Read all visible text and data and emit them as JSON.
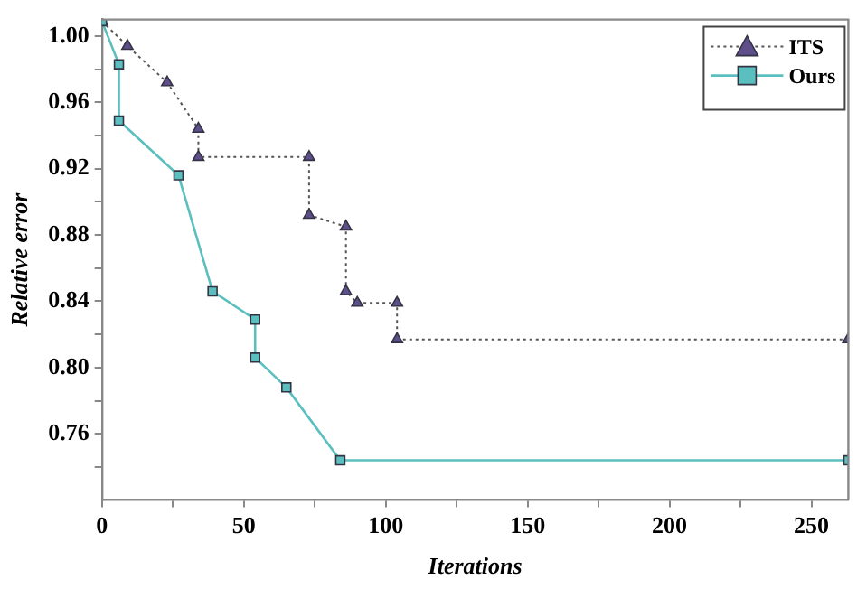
{
  "chart_data": {
    "type": "line",
    "xlabel": "Iterations",
    "ylabel": "Relative error",
    "xlim": [
      0,
      263
    ],
    "ylim": [
      0.72,
      1.01
    ],
    "xticks": [
      0,
      {
        "value": 25,
        "label": null
      },
      50,
      {
        "value": 75,
        "label": null
      },
      100,
      {
        "value": 125,
        "label": null
      },
      150,
      {
        "value": 175,
        "label": null
      },
      200,
      {
        "value": 225,
        "label": null
      },
      250
    ],
    "yticks": [
      {
        "value": 0.74,
        "label": null
      },
      0.76,
      {
        "value": 0.78,
        "label": null
      },
      {
        "value": 0.8,
        "label": "0.80"
      },
      {
        "value": 0.82,
        "label": null
      },
      0.84,
      {
        "value": 0.86,
        "label": null
      },
      0.88,
      {
        "value": 0.9,
        "label": null
      },
      0.92,
      {
        "value": 0.94,
        "label": null
      },
      0.96,
      {
        "value": 0.98,
        "label": null
      },
      {
        "value": 1,
        "label": "1.00"
      }
    ],
    "grid": false,
    "legend": "top right",
    "series": [
      {
        "name": "ITS",
        "color": "#5e4f8a",
        "marker": "triangle",
        "line_style": "dotted",
        "x": [
          0,
          9,
          23,
          34,
          34,
          73,
          73,
          86,
          86,
          90,
          104,
          104,
          263
        ],
        "values": [
          1.009,
          0.994,
          0.972,
          0.944,
          0.927,
          0.927,
          0.892,
          0.885,
          0.846,
          0.839,
          0.839,
          0.817,
          0.817
        ]
      },
      {
        "name": "Ours",
        "color": "#5bbfbf",
        "marker": "square",
        "line_style": "solid",
        "x": [
          0,
          6,
          6,
          27,
          39,
          54,
          54,
          65,
          84,
          263
        ],
        "values": [
          1.009,
          0.983,
          0.949,
          0.916,
          0.846,
          0.829,
          0.806,
          0.788,
          0.744,
          0.744
        ]
      }
    ]
  }
}
